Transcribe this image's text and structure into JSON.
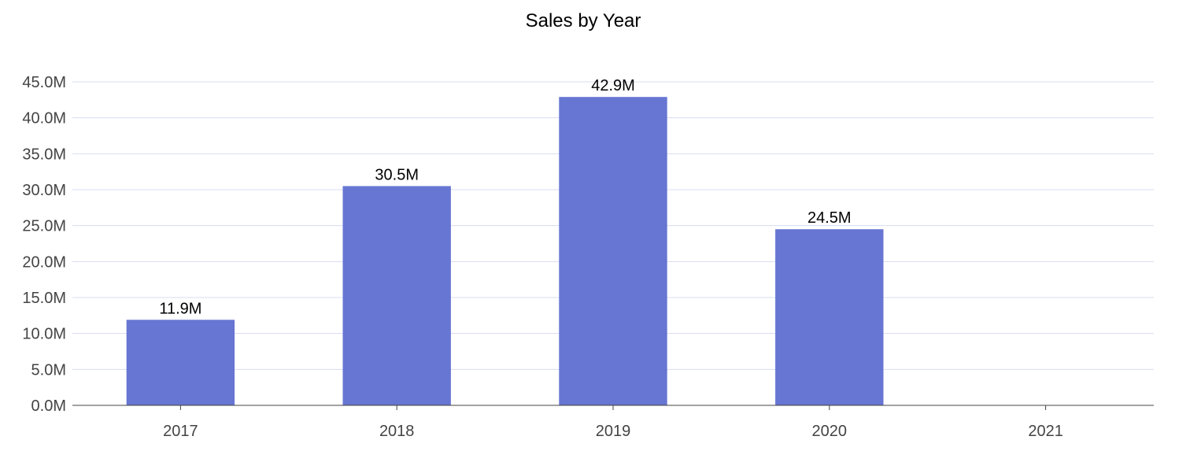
{
  "chart_data": {
    "type": "bar",
    "title": "Sales by Year",
    "xlabel": "",
    "ylabel": "",
    "categories": [
      "2017",
      "2018",
      "2019",
      "2020",
      "2021"
    ],
    "values": [
      11.9,
      30.5,
      42.9,
      24.5,
      null
    ],
    "data_labels": [
      "11.9M",
      "30.5M",
      "42.9M",
      "24.5M",
      ""
    ],
    "unit": "M",
    "ylim": [
      0,
      45
    ],
    "yticks": [
      0,
      5,
      10,
      15,
      20,
      25,
      30,
      35,
      40,
      45
    ],
    "ytick_labels": [
      "0.0M",
      "5.0M",
      "10.0M",
      "15.0M",
      "20.0M",
      "25.0M",
      "30.0M",
      "35.0M",
      "40.0M",
      "45.0M"
    ],
    "grid": true,
    "legend": "none",
    "colors": {
      "bar": "#6776d2",
      "grid": "#d8dcf0",
      "axis": "#444444"
    }
  }
}
